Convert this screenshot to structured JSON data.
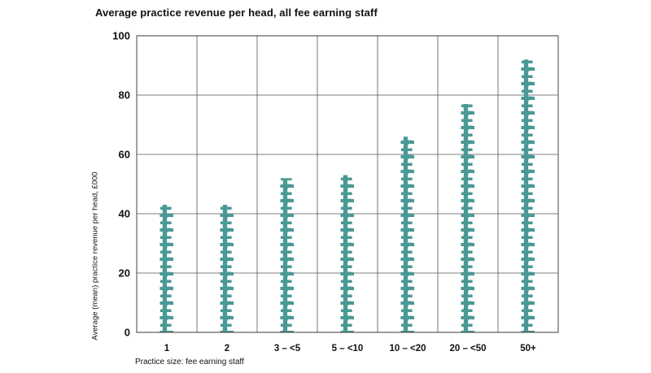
{
  "chart_data": {
    "type": "bar",
    "title": "Average practice revenue per head, all fee earning staff",
    "xlabel": "Practice size: fee earning staff",
    "ylabel": "Average (mean) practice revenue per head, £000",
    "categories": [
      "1",
      "2",
      "3 – <5",
      "5 – <10",
      "10 – <20",
      "20 – <50",
      "50+"
    ],
    "values": [
      43,
      43,
      52,
      53,
      66,
      77,
      92
    ],
    "ylim": [
      0,
      100
    ],
    "yticks": [
      "0",
      "20",
      "40",
      "60",
      "80",
      "100"
    ],
    "bar_symbol": "£",
    "bar_color": "#4a9994",
    "grid": true
  }
}
